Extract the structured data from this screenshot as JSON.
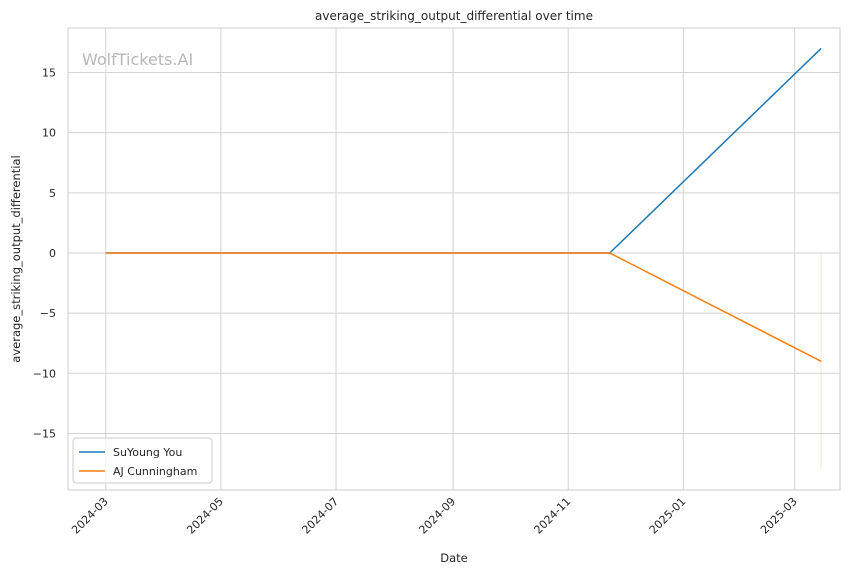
{
  "chart_data": {
    "type": "line",
    "title": "average_striking_output_differential over time",
    "xlabel": "Date",
    "ylabel": "average_striking_output_differential",
    "watermark": "WolfTickets.AI",
    "x_axis_type": "date",
    "xlim": [
      "2024-02-10",
      "2025-03-25"
    ],
    "ylim": [
      -19.7,
      18.7
    ],
    "x_ticks": [
      "2024-03",
      "2024-05",
      "2024-07",
      "2024-09",
      "2024-11",
      "2025-01",
      "2025-03"
    ],
    "y_ticks": [
      -15,
      -10,
      -5,
      0,
      5,
      10,
      15
    ],
    "y_tick_labels": [
      "−15",
      "−10",
      "−5",
      "0",
      "5",
      "10",
      "15"
    ],
    "grid": true,
    "legend_position": "lower-left",
    "series": [
      {
        "name": "SuYoung You",
        "color": "#1f77b4",
        "points": [
          {
            "x": "2024-03-01",
            "y": 0
          },
          {
            "x": "2024-11-23",
            "y": 0
          },
          {
            "x": "2025-03-15",
            "y": 17
          }
        ]
      },
      {
        "name": "AJ Cunningham",
        "color": "#ff7f0e",
        "points": [
          {
            "x": "2024-03-01",
            "y": 0
          },
          {
            "x": "2024-11-23",
            "y": 0
          },
          {
            "x": "2025-03-15",
            "y": -9
          }
        ]
      }
    ],
    "annotations": [
      {
        "type": "vertical-segment",
        "x": "2025-03-15",
        "y_from": 0,
        "y_to": -18,
        "color": "#ff7f0e",
        "opacity": 0.2
      }
    ]
  }
}
